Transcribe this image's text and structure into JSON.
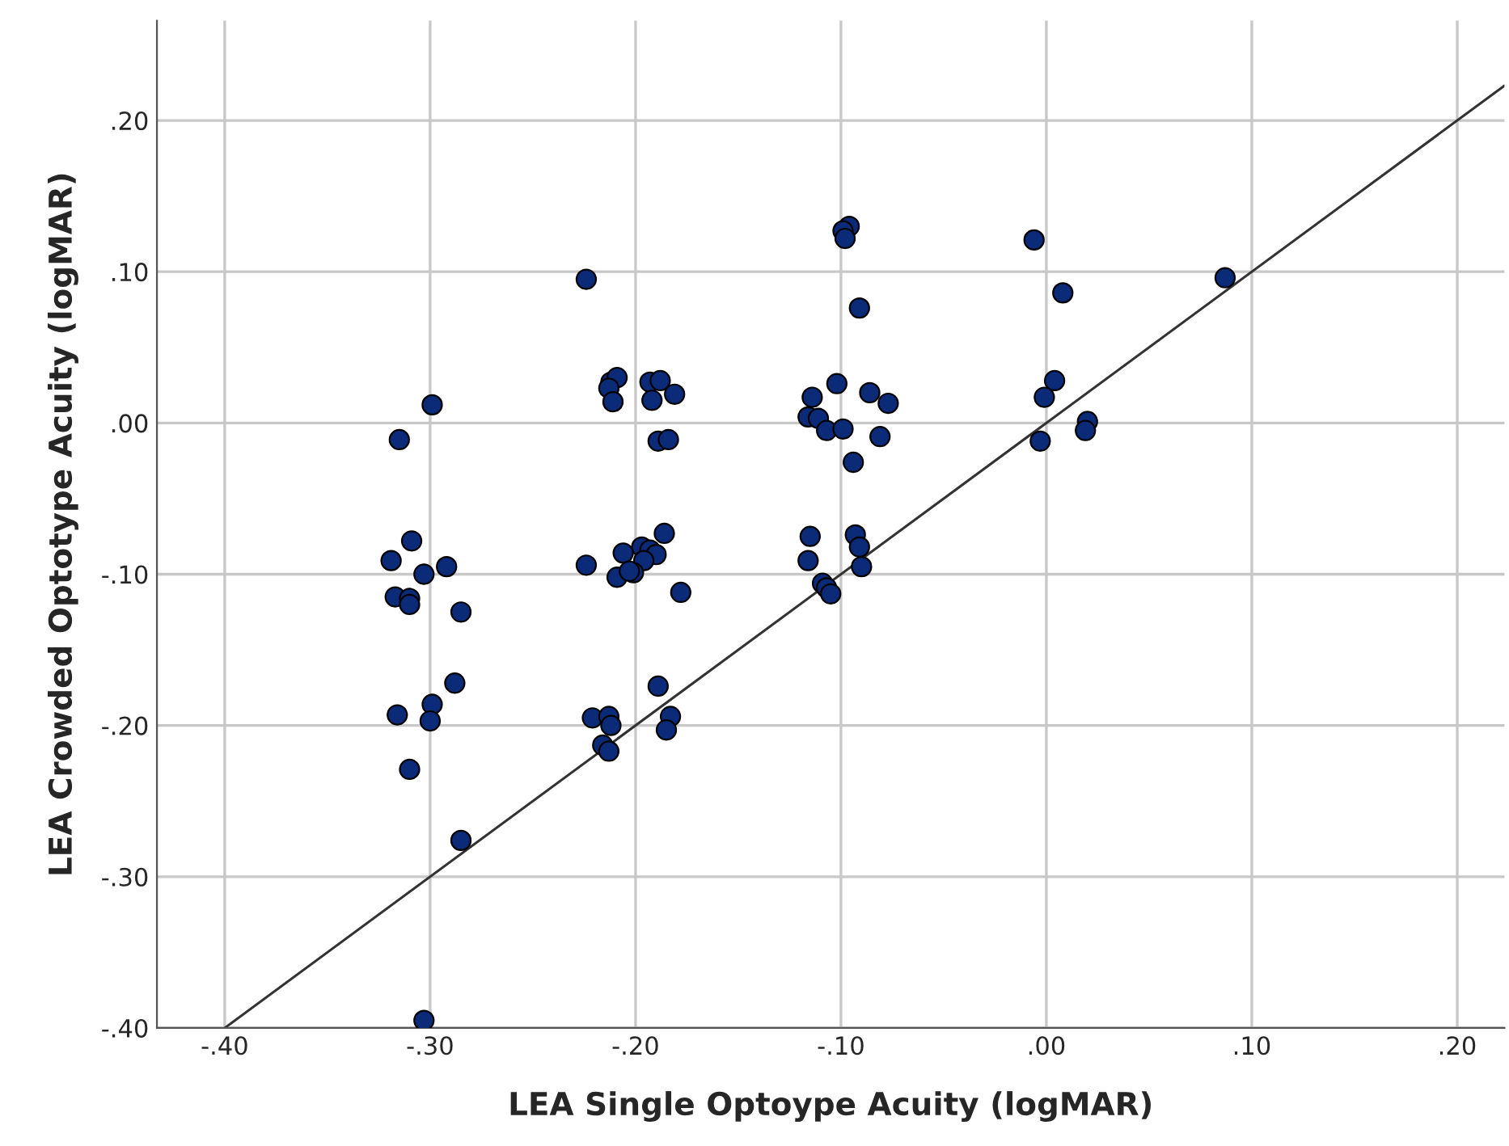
{
  "chart_data": {
    "type": "scatter",
    "xlabel": "LEA Single Optoype Acuity (logMAR)",
    "ylabel": "LEA Crowded Optotype Acuity (logMAR)",
    "xlim": [
      -0.433,
      0.223
    ],
    "ylim": [
      -0.4,
      0.266
    ],
    "xticks": [
      {
        "value": -0.4,
        "label": "-.40"
      },
      {
        "value": -0.3,
        "label": "-.30"
      },
      {
        "value": -0.2,
        "label": "-.20"
      },
      {
        "value": -0.1,
        "label": "-.10"
      },
      {
        "value": 0.0,
        "label": ".00"
      },
      {
        "value": 0.1,
        "label": ".10"
      },
      {
        "value": 0.2,
        "label": ".20"
      }
    ],
    "yticks": [
      {
        "value": -0.4,
        "label": "-.40"
      },
      {
        "value": -0.3,
        "label": "-.30"
      },
      {
        "value": -0.2,
        "label": "-.20"
      },
      {
        "value": -0.1,
        "label": "-.10"
      },
      {
        "value": 0.0,
        "label": ".00"
      },
      {
        "value": 0.1,
        "label": ".10"
      },
      {
        "value": 0.2,
        "label": ".20"
      }
    ],
    "grid": true,
    "marker": "circle",
    "series": [
      {
        "color": "#0b2a78",
        "x": [
          -0.224,
          -0.212,
          -0.209,
          -0.213,
          -0.211,
          -0.299,
          -0.315,
          -0.309,
          -0.319,
          -0.303,
          -0.292,
          -0.317,
          -0.31,
          -0.31,
          -0.285,
          -0.288,
          -0.299,
          -0.316,
          -0.3,
          -0.224,
          -0.221,
          -0.213,
          -0.212,
          -0.216,
          -0.213,
          -0.31,
          -0.285,
          -0.303,
          -0.183,
          -0.185,
          -0.096,
          -0.099,
          -0.098,
          -0.091,
          -0.193,
          -0.188,
          -0.192,
          -0.181,
          -0.189,
          -0.184,
          -0.102,
          -0.114,
          -0.086,
          -0.077,
          -0.116,
          -0.111,
          -0.107,
          -0.099,
          -0.081,
          -0.094,
          -0.186,
          -0.197,
          -0.193,
          -0.19,
          -0.196,
          -0.201,
          -0.206,
          -0.209,
          -0.203,
          -0.178,
          -0.189,
          -0.115,
          -0.093,
          -0.091,
          -0.116,
          -0.09,
          -0.109,
          -0.107,
          -0.105,
          -0.006,
          0.008,
          0.004,
          -0.001,
          -0.003,
          0.02,
          0.019,
          0.087
        ],
        "values": [
          0.095,
          0.027,
          0.03,
          0.023,
          0.014,
          0.012,
          -0.011,
          -0.078,
          -0.091,
          -0.1,
          -0.095,
          -0.115,
          -0.116,
          -0.12,
          -0.125,
          -0.172,
          -0.186,
          -0.193,
          -0.197,
          -0.094,
          -0.195,
          -0.194,
          -0.2,
          -0.213,
          -0.217,
          -0.229,
          -0.276,
          -0.395,
          -0.194,
          -0.203,
          0.13,
          0.127,
          0.122,
          0.076,
          0.027,
          0.028,
          0.015,
          0.019,
          -0.012,
          -0.011,
          0.026,
          0.017,
          0.02,
          0.013,
          0.004,
          0.003,
          -0.005,
          -0.004,
          -0.009,
          -0.026,
          -0.073,
          -0.082,
          -0.084,
          -0.087,
          -0.091,
          -0.099,
          -0.086,
          -0.102,
          -0.098,
          -0.112,
          -0.174,
          -0.075,
          -0.074,
          -0.082,
          -0.091,
          -0.095,
          -0.106,
          -0.109,
          -0.113,
          0.121,
          0.086,
          0.028,
          0.017,
          -0.012,
          0.001,
          -0.005,
          0.096
        ]
      },
      {
        "type": "line",
        "color": "#333333",
        "line_style": "solid",
        "marker": "none",
        "x": [
          -0.4,
          0.223
        ],
        "values": [
          -0.4,
          0.223
        ]
      }
    ]
  }
}
